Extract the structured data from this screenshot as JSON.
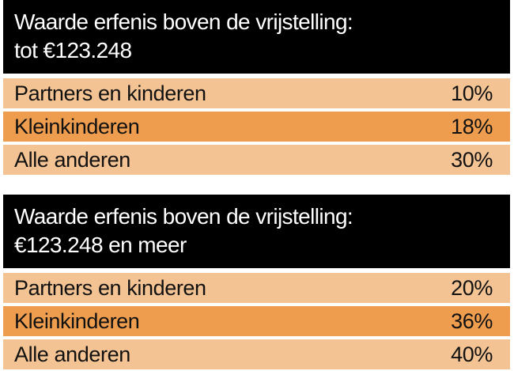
{
  "tables": [
    {
      "header_line1": "Waarde erfenis boven de vrijstelling:",
      "header_line2": "tot €123.248",
      "rows": [
        {
          "label": "Partners en kinderen",
          "rate": "10%"
        },
        {
          "label": "Kleinkinderen",
          "rate": "18%"
        },
        {
          "label": "Alle anderen",
          "rate": "30%"
        }
      ]
    },
    {
      "header_line1": "Waarde erfenis boven de vrijstelling:",
      "header_line2": "€123.248 en meer",
      "rows": [
        {
          "label": "Partners en kinderen",
          "rate": "20%"
        },
        {
          "label": "Kleinkinderen",
          "rate": "36%"
        },
        {
          "label": "Alle anderen",
          "rate": "40%"
        }
      ]
    }
  ],
  "colors": {
    "header_bg": "#000000",
    "header_text": "#ffffff",
    "row_light": "#f4c393",
    "row_dark": "#ee9d4f"
  }
}
